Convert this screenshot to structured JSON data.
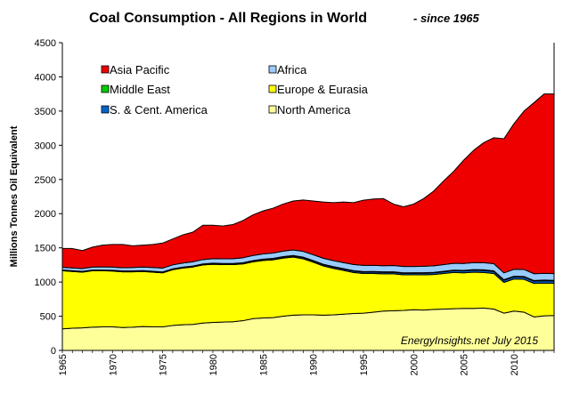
{
  "chart_data": {
    "type": "area",
    "stacked": true,
    "title": "Coal Consumption - All Regions in World",
    "subtitle": "- since 1965",
    "xlabel": "",
    "ylabel": "Millions Tonnes Oil Equivalent",
    "xlim": [
      1965,
      2014
    ],
    "ylim": [
      0,
      4500
    ],
    "xticks": [
      "1965",
      "1970",
      "1975",
      "1980",
      "1985",
      "1990",
      "1995",
      "2000",
      "2005",
      "2010"
    ],
    "yticks": [
      "0",
      "500",
      "1000",
      "1500",
      "2000",
      "2500",
      "3000",
      "3500",
      "4000",
      "4500"
    ],
    "grid": false,
    "legend_placement": "top-left",
    "annotation": "EnergyInsights.net July 2015",
    "x": [
      1965,
      1966,
      1967,
      1968,
      1969,
      1970,
      1971,
      1972,
      1973,
      1974,
      1975,
      1976,
      1977,
      1978,
      1979,
      1980,
      1981,
      1982,
      1983,
      1984,
      1985,
      1986,
      1987,
      1988,
      1989,
      1990,
      1991,
      1992,
      1993,
      1994,
      1995,
      1996,
      1997,
      1998,
      1999,
      2000,
      2001,
      2002,
      2003,
      2004,
      2005,
      2006,
      2007,
      2008,
      2009,
      2010,
      2011,
      2012,
      2013,
      2014
    ],
    "series": [
      {
        "name": "North America",
        "color": "#ffff99",
        "values": [
          315,
          325,
          330,
          340,
          345,
          345,
          335,
          340,
          350,
          345,
          345,
          365,
          375,
          380,
          400,
          410,
          415,
          420,
          435,
          465,
          475,
          480,
          500,
          515,
          520,
          520,
          515,
          520,
          530,
          540,
          545,
          560,
          575,
          580,
          585,
          595,
          590,
          600,
          605,
          610,
          615,
          615,
          620,
          605,
          545,
          575,
          560,
          490,
          505,
          510
        ]
      },
      {
        "name": "Europe & Eurasia",
        "color": "#ffff00",
        "values": [
          850,
          830,
          815,
          825,
          820,
          815,
          815,
          810,
          805,
          800,
          790,
          815,
          830,
          840,
          850,
          850,
          840,
          835,
          830,
          830,
          840,
          845,
          850,
          850,
          820,
          770,
          720,
          680,
          640,
          600,
          580,
          565,
          545,
          540,
          520,
          510,
          515,
          510,
          520,
          530,
          520,
          530,
          520,
          520,
          450,
          470,
          480,
          490,
          480,
          470
        ]
      },
      {
        "name": "S. & Cent. America",
        "color": "#0066cc",
        "values": [
          8,
          8,
          8,
          8,
          8,
          9,
          9,
          9,
          9,
          10,
          10,
          10,
          10,
          11,
          11,
          12,
          12,
          12,
          13,
          14,
          15,
          15,
          16,
          16,
          17,
          17,
          18,
          18,
          19,
          20,
          20,
          21,
          21,
          22,
          22,
          23,
          24,
          24,
          25,
          26,
          27,
          28,
          29,
          30,
          30,
          31,
          32,
          33,
          34,
          35
        ]
      },
      {
        "name": "Middle East",
        "color": "#00cc00",
        "values": [
          3,
          3,
          3,
          3,
          3,
          3,
          3,
          3,
          3,
          3,
          3,
          3,
          3,
          3,
          4,
          4,
          4,
          4,
          5,
          5,
          5,
          6,
          6,
          7,
          7,
          7,
          7,
          8,
          8,
          8,
          8,
          8,
          8,
          8,
          8,
          8,
          8,
          8,
          8,
          8,
          9,
          9,
          9,
          9,
          9,
          9,
          9,
          9,
          10,
          10
        ]
      },
      {
        "name": "Africa",
        "color": "#99ccff",
        "values": [
          40,
          41,
          42,
          44,
          45,
          47,
          48,
          50,
          52,
          54,
          56,
          58,
          60,
          62,
          64,
          66,
          68,
          70,
          72,
          74,
          76,
          78,
          80,
          82,
          84,
          86,
          88,
          88,
          88,
          88,
          90,
          90,
          90,
          92,
          92,
          92,
          94,
          95,
          97,
          100,
          100,
          102,
          104,
          104,
          100,
          102,
          103,
          100,
          98,
          98
        ]
      },
      {
        "name": "Asia Pacific",
        "color": "#ee0000",
        "values": [
          274,
          283,
          262,
          290,
          319,
          331,
          340,
          318,
          321,
          338,
          366,
          379,
          412,
          434,
          501,
          488,
          481,
          499,
          545,
          595,
          629,
          656,
          688,
          715,
          752,
          785,
          822,
          846,
          885,
          904,
          954,
          970,
          981,
          898,
          873,
          912,
          989,
          1093,
          1225,
          1346,
          1512,
          1645,
          1757,
          1842,
          1961,
          2129,
          2316,
          2501,
          2623,
          2627
        ]
      }
    ]
  },
  "legend": {
    "items": [
      {
        "label": "Asia Pacific",
        "color": "#ee0000"
      },
      {
        "label": "Africa",
        "color": "#99ccff"
      },
      {
        "label": "Middle East",
        "color": "#00cc00"
      },
      {
        "label": "Europe & Eurasia",
        "color": "#ffff00"
      },
      {
        "label": "S. & Cent. America",
        "color": "#0066cc"
      },
      {
        "label": "North America",
        "color": "#ffff99"
      }
    ]
  }
}
